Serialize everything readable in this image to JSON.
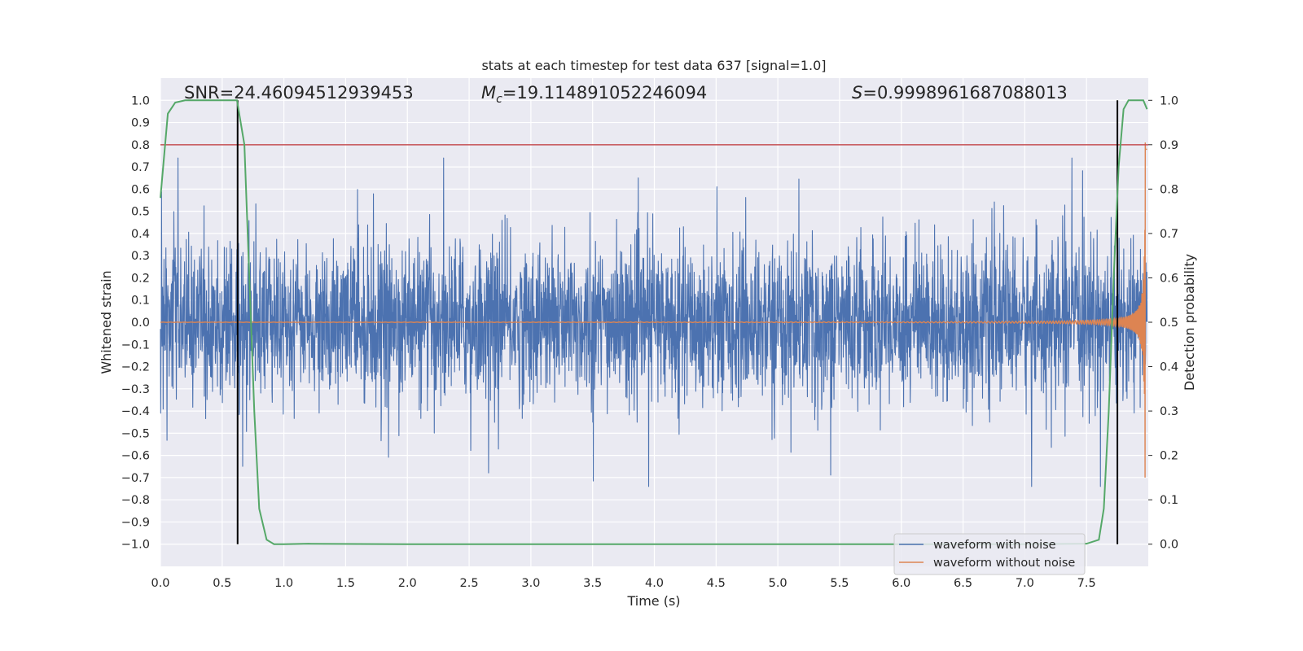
{
  "chart_data": {
    "type": "line",
    "title": "stats at each timestep for test data 637 [signal=1.0]",
    "xlabel": "Time (s)",
    "ylabel": "Whitened strain",
    "y2label": "Detection probability",
    "xlim": [
      0.0,
      8.0
    ],
    "ylim": [
      -1.1,
      1.1
    ],
    "y2lim": [
      -0.05,
      1.05
    ],
    "xticks": [
      "0.0",
      "0.5",
      "1.0",
      "1.5",
      "2.0",
      "2.5",
      "3.0",
      "3.5",
      "4.0",
      "4.5",
      "5.0",
      "5.5",
      "6.0",
      "6.5",
      "7.0",
      "7.5"
    ],
    "yticks": [
      "1.0",
      "0.9",
      "0.8",
      "0.7",
      "0.6",
      "0.5",
      "0.4",
      "0.3",
      "0.2",
      "0.1",
      "0.0",
      "−0.1",
      "−0.2",
      "−0.3",
      "−0.4",
      "−0.5",
      "−0.6",
      "−0.7",
      "−0.8",
      "−0.9",
      "−1.0"
    ],
    "y2ticks": [
      "1.0",
      "0.9",
      "0.8",
      "0.7",
      "0.6",
      "0.5",
      "0.4",
      "0.3",
      "0.2",
      "0.1",
      "0.0"
    ],
    "grid": true,
    "legend": "lower-right",
    "annotations": {
      "snr": "SNR=24.46094512939453",
      "mc_symbol": "M",
      "mc_sub": "c",
      "mc_value": "=19.114891052246094",
      "s_symbol": "S",
      "s_value": "=0.9998961687088013"
    },
    "series": [
      {
        "name": "waveform with noise",
        "color": "#4c72b0",
        "description_axis": "left",
        "amplitude_typical": 0.4,
        "amplitude_peak": 0.74
      },
      {
        "name": "waveform without noise",
        "color": "#dd8452",
        "axis": "left",
        "chirp_end_time": 7.98,
        "peak_amplitude": 0.85
      },
      {
        "name": "detection probability",
        "color": "#55a868",
        "axis": "right",
        "x": [
          0.0,
          0.06,
          0.12,
          0.2,
          0.3,
          0.5,
          0.62,
          0.68,
          0.72,
          0.76,
          0.8,
          0.86,
          0.92,
          1.0,
          1.2,
          2.0,
          4.0,
          6.0,
          7.0,
          7.5,
          7.6,
          7.64,
          7.68,
          7.72,
          7.76,
          7.8,
          7.84,
          7.88,
          7.92,
          7.96,
          7.99
        ],
        "y": [
          0.78,
          0.97,
          0.995,
          1.0,
          1.0,
          1.0,
          1.0,
          0.9,
          0.6,
          0.3,
          0.08,
          0.01,
          0.0,
          0.0,
          0.001,
          0.0,
          0.0,
          0.0,
          0.0,
          0.001,
          0.01,
          0.08,
          0.3,
          0.6,
          0.85,
          0.98,
          1.0,
          1.0,
          1.0,
          1.0,
          0.98
        ]
      }
    ],
    "hlines": [
      {
        "y": 0.8,
        "color": "#c44e52"
      }
    ],
    "vlines": [
      {
        "x": 0.625,
        "color": "#000000"
      },
      {
        "x": 7.75,
        "color": "#000000"
      }
    ]
  },
  "legend_items": [
    {
      "label": "waveform with noise",
      "color": "#4c72b0"
    },
    {
      "label": "waveform without noise",
      "color": "#dd8452"
    }
  ],
  "colors": {
    "plot_bg": "#eaeaf2",
    "grid": "#ffffff"
  }
}
